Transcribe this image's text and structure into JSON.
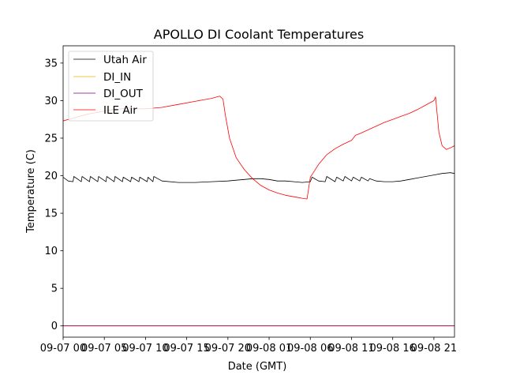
{
  "chart_data": {
    "type": "line",
    "title": "APOLLO DI Coolant Temperatures",
    "xlabel": "Date (GMT)",
    "ylabel": "Temperature (C)",
    "xlim": [
      0,
      47.5
    ],
    "ylim": [
      -1.5,
      37.3
    ],
    "x_unit": "hours since 09-07 00:00 GMT",
    "yticks": [
      0,
      5,
      10,
      15,
      20,
      25,
      30,
      35
    ],
    "xticks": [
      {
        "value": 0,
        "label": "09-07 00"
      },
      {
        "value": 5,
        "label": "09-07 05"
      },
      {
        "value": 10,
        "label": "09-07 10"
      },
      {
        "value": 15,
        "label": "09-07 15"
      },
      {
        "value": 20,
        "label": "09-07 20"
      },
      {
        "value": 25,
        "label": "09-08 01"
      },
      {
        "value": 30,
        "label": "09-08 06"
      },
      {
        "value": 35,
        "label": "09-08 11"
      },
      {
        "value": 40,
        "label": "09-08 16"
      },
      {
        "value": 45,
        "label": "09-08 21"
      }
    ],
    "legend": {
      "position": "upper-left"
    },
    "series": [
      {
        "name": "Utah Air",
        "color": "#000000",
        "x": [
          0,
          0.6,
          1.2,
          1.3,
          2.2,
          2.3,
          3.2,
          3.3,
          4.2,
          4.3,
          5.2,
          5.3,
          6.2,
          6.3,
          7.2,
          7.3,
          8.2,
          8.3,
          9.2,
          9.3,
          10.2,
          10.3,
          10.9,
          11,
          12,
          14,
          16,
          18,
          20,
          21,
          22,
          23,
          24,
          25,
          26,
          27,
          28,
          29,
          30,
          30.2,
          31,
          31.8,
          32,
          33,
          33.2,
          34,
          34.2,
          35,
          35.2,
          36,
          36.2,
          37,
          37.2,
          38,
          39,
          40,
          41,
          42,
          43,
          44,
          45,
          46,
          47,
          47.5
        ],
        "values": [
          19.8,
          19.3,
          19.2,
          19.9,
          19.2,
          19.9,
          19.2,
          19.9,
          19.2,
          19.9,
          19.2,
          19.9,
          19.2,
          19.9,
          19.2,
          19.8,
          19.2,
          19.8,
          19.2,
          19.8,
          19.2,
          19.8,
          19.2,
          19.9,
          19.3,
          19.1,
          19.1,
          19.2,
          19.3,
          19.4,
          19.5,
          19.6,
          19.6,
          19.5,
          19.3,
          19.3,
          19.2,
          19.1,
          19.2,
          19.8,
          19.3,
          19.2,
          19.9,
          19.2,
          19.8,
          19.3,
          19.9,
          19.3,
          19.8,
          19.3,
          19.8,
          19.3,
          19.6,
          19.3,
          19.2,
          19.2,
          19.3,
          19.5,
          19.7,
          19.9,
          20.1,
          20.3,
          20.4,
          20.3
        ]
      },
      {
        "name": "DI_IN",
        "color": "#e6b400",
        "x": [
          0,
          47.5
        ],
        "values": [
          0,
          0
        ]
      },
      {
        "name": "DI_OUT",
        "color": "#7f007f",
        "x": [
          0,
          47.5
        ],
        "values": [
          0,
          0
        ]
      },
      {
        "name": "ILE Air",
        "color": "#ff0000",
        "x": [
          0,
          1,
          2,
          3,
          4,
          5,
          6,
          7,
          8,
          9,
          10,
          12,
          14,
          16,
          18,
          19,
          19.4,
          19.7,
          20.2,
          21,
          22,
          23,
          24,
          25,
          26,
          27,
          28,
          29,
          29.6,
          30,
          30.3,
          31,
          32,
          33,
          34,
          35,
          35.5,
          36,
          37,
          38,
          39,
          40,
          41,
          42,
          43,
          44,
          45,
          45.2,
          45.6,
          46,
          46.5,
          47,
          47.5
        ],
        "values": [
          27.3,
          27.6,
          27.9,
          28.2,
          28.4,
          28.6,
          28.8,
          28.9,
          29.0,
          28.9,
          28.9,
          29.1,
          29.5,
          29.9,
          30.3,
          30.6,
          30.2,
          28.0,
          25.0,
          22.4,
          20.8,
          19.6,
          18.7,
          18.1,
          17.7,
          17.4,
          17.2,
          17.0,
          16.9,
          19.8,
          20.3,
          21.5,
          22.8,
          23.6,
          24.2,
          24.7,
          25.4,
          25.6,
          26.1,
          26.6,
          27.1,
          27.5,
          27.9,
          28.3,
          28.8,
          29.4,
          30.0,
          30.5,
          25.8,
          24.0,
          23.5,
          23.7,
          24.0
        ]
      }
    ]
  }
}
